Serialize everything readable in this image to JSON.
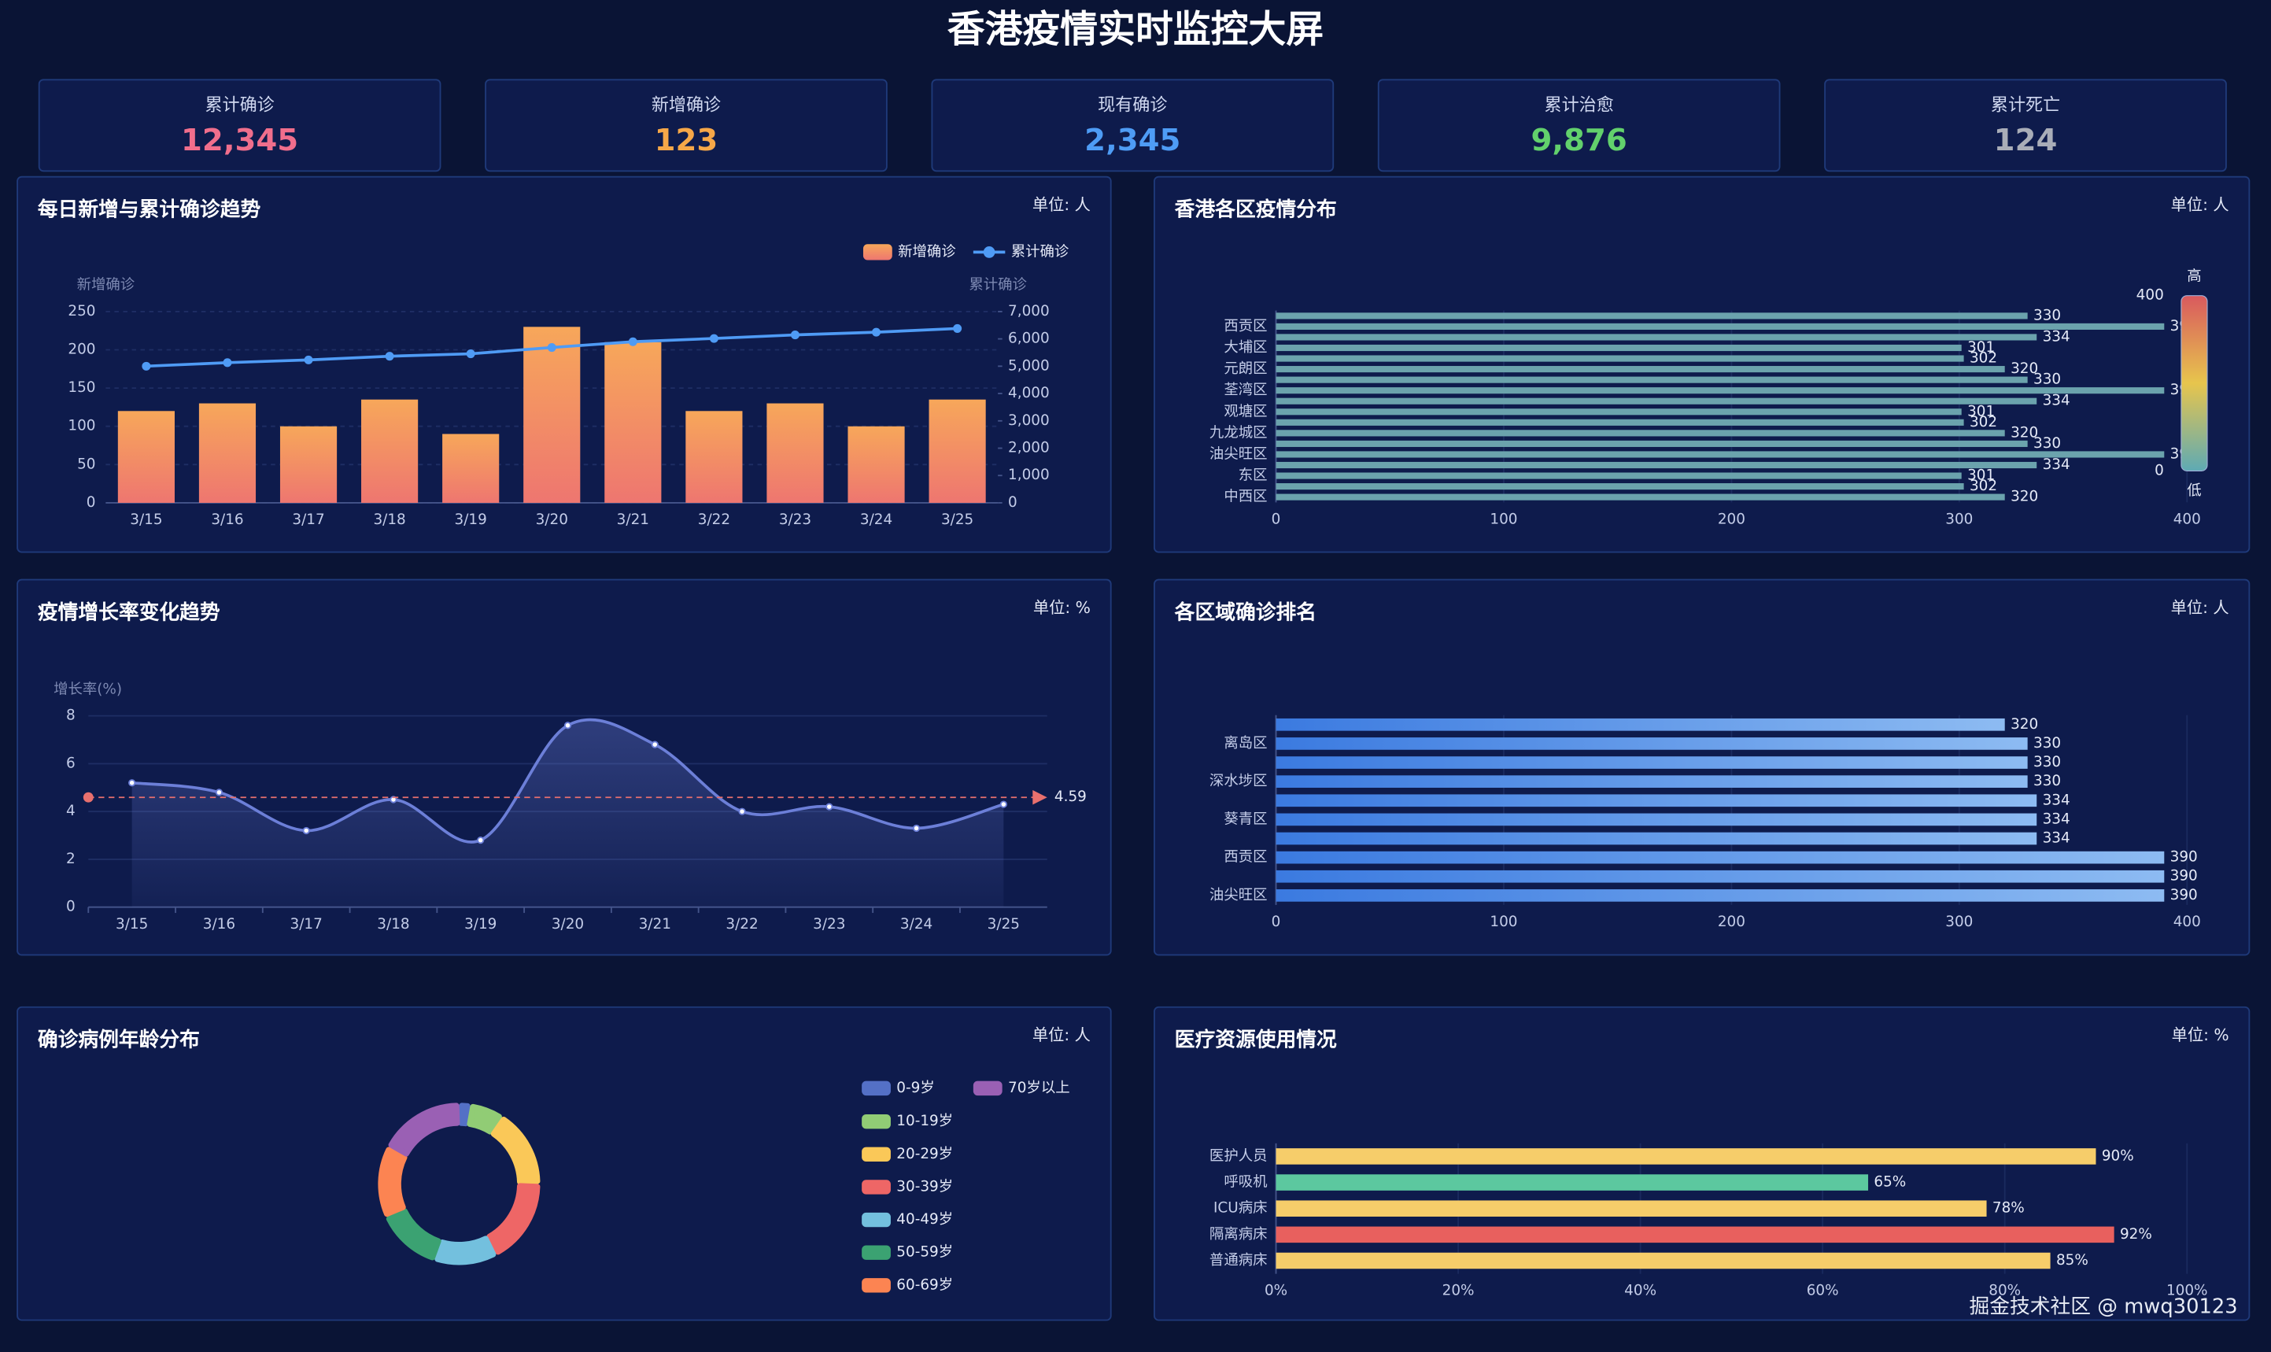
{
  "header": {
    "title": "香港疫情实时监控大屏"
  },
  "kpis": [
    {
      "label": "累计确诊",
      "value": "12,345",
      "color": "#f06e8c"
    },
    {
      "label": "新增确诊",
      "value": "123",
      "color": "#f6a748"
    },
    {
      "label": "现有确诊",
      "value": "2,345",
      "color": "#4e9cf5"
    },
    {
      "label": "累计治愈",
      "value": "9,876",
      "color": "#62d16c"
    },
    {
      "label": "累计死亡",
      "value": "124",
      "color": "#a9adb8"
    }
  ],
  "chart_data": [
    {
      "type": "combo",
      "title": "每日新增与累计确诊趋势",
      "unit": "单位: 人",
      "categories": [
        "3/15",
        "3/16",
        "3/17",
        "3/18",
        "3/19",
        "3/20",
        "3/21",
        "3/22",
        "3/23",
        "3/24",
        "3/25"
      ],
      "series": [
        {
          "name": "新增确诊",
          "type": "bar",
          "gradient": [
            "#f7a75a",
            "#ee7670"
          ],
          "values": [
            120,
            130,
            100,
            135,
            90,
            230,
            210,
            120,
            130,
            100,
            135
          ]
        },
        {
          "name": "累计确诊",
          "type": "line",
          "axis": "y2",
          "color": "#4f9bf5",
          "values": [
            5000,
            5130,
            5230,
            5365,
            5455,
            5685,
            5895,
            6015,
            6145,
            6245,
            6380
          ]
        }
      ],
      "ylim": [
        0,
        250
      ],
      "yticks": [
        0,
        50,
        100,
        150,
        200,
        250
      ],
      "y2lim": [
        0,
        7000
      ],
      "y2ticks": [
        0,
        {
          "value": 1000,
          "label": "1,000"
        },
        {
          "value": 2000,
          "label": "2,000"
        },
        {
          "value": 3000,
          "label": "3,000"
        },
        {
          "value": 4000,
          "label": "4,000"
        },
        {
          "value": 5000,
          "label": "5,000"
        },
        {
          "value": 6000,
          "label": "6,000"
        },
        {
          "value": 7000,
          "label": "7,000"
        }
      ],
      "y_name": "新增确诊",
      "y2_name": "累计确诊",
      "legend": "top-right",
      "grid": true
    },
    {
      "type": "hbar",
      "title": "香港各区疫情分布",
      "unit": "单位: 人",
      "categories": [
        null,
        "西贡区",
        null,
        "大埔区",
        null,
        "元朗区",
        null,
        "荃湾区",
        null,
        "观塘区",
        null,
        "九龙城区",
        null,
        "油尖旺区",
        null,
        "东区",
        null,
        "中西区"
      ],
      "values": [
        330,
        390,
        334,
        301,
        302,
        320,
        330,
        390,
        334,
        301,
        302,
        320,
        330,
        390,
        334,
        301,
        302,
        320
      ],
      "color": "#6ba3ad",
      "xlim": [
        0,
        400
      ],
      "xticks": [
        0,
        100,
        200,
        300,
        400
      ],
      "visual_map": {
        "range": [
          0,
          400
        ],
        "labels": [
          "高",
          "低"
        ],
        "colors": [
          "#d9595e",
          "#e7c54d",
          "#5eaab4"
        ]
      }
    },
    {
      "type": "line",
      "title": "疫情增长率变化趋势",
      "unit": "单位: %",
      "categories": [
        "3/15",
        "3/16",
        "3/17",
        "3/18",
        "3/19",
        "3/20",
        "3/21",
        "3/22",
        "3/23",
        "3/24",
        "3/25"
      ],
      "values": [
        5.2,
        4.8,
        3.2,
        4.5,
        2.8,
        7.6,
        6.8,
        4.0,
        4.2,
        3.3,
        4.3
      ],
      "color": "#6c7fd8",
      "area_gradient": [
        "rgba(108,127,216,0.35)",
        "rgba(108,127,216,0.06)"
      ],
      "smooth": true,
      "ylim": [
        0,
        8
      ],
      "yticks": [
        0,
        2,
        4,
        6,
        8
      ],
      "y_name": "增长率(%)",
      "mark_line": {
        "value": 4.59,
        "color": "#e8706e"
      },
      "grid": true
    },
    {
      "type": "hbar",
      "title": "各区域确诊排名",
      "unit": "单位: 人",
      "categories": [
        null,
        "离岛区",
        null,
        "深水埗区",
        null,
        "葵青区",
        null,
        "西贡区",
        null,
        "油尖旺区"
      ],
      "values": [
        320,
        330,
        330,
        330,
        334,
        334,
        334,
        390,
        390,
        390
      ],
      "gradient": [
        "#3b7ae0",
        "#8dbbf2"
      ],
      "xlim": [
        0,
        400
      ],
      "xticks": [
        0,
        100,
        200,
        300,
        400
      ]
    },
    {
      "type": "pie",
      "title": "确诊病例年龄分布",
      "unit": "单位: 人",
      "categories": [
        "0-9岁",
        "10-19岁",
        "20-29岁",
        "30-39岁",
        "40-49岁",
        "50-59岁",
        "60-69岁",
        "70岁以上"
      ],
      "values": [
        50,
        150,
        350,
        380,
        280,
        290,
        320,
        380
      ],
      "colors": [
        "#5470c6",
        "#91cc75",
        "#fac858",
        "#ee6666",
        "#73c0de",
        "#3ba272",
        "#fc8452",
        "#9a60b4"
      ]
    },
    {
      "type": "hbar",
      "title": "医疗资源使用情况",
      "unit": "单位: %",
      "categories": [
        "医护人员",
        "呼吸机",
        "ICU病床",
        "隔离病床",
        "普通病床"
      ],
      "values": [
        90,
        65,
        78,
        92,
        85
      ],
      "value_labels": [
        "90%",
        "65%",
        "78%",
        "92%",
        "85%"
      ],
      "colors": [
        "#f6cd6a",
        "#5cc89f",
        "#f6cd6a",
        "#e8605e",
        "#f6cd6a"
      ],
      "xlim": [
        0,
        100
      ],
      "xticks": [
        {
          "value": 0,
          "label": "0%"
        },
        {
          "value": 20,
          "label": "20%"
        },
        {
          "value": 40,
          "label": "40%"
        },
        {
          "value": 60,
          "label": "60%"
        },
        {
          "value": 80,
          "label": "80%"
        },
        {
          "value": 100,
          "label": "100%"
        }
      ]
    }
  ],
  "watermark": "掘金技术社区 @ mwq30123"
}
